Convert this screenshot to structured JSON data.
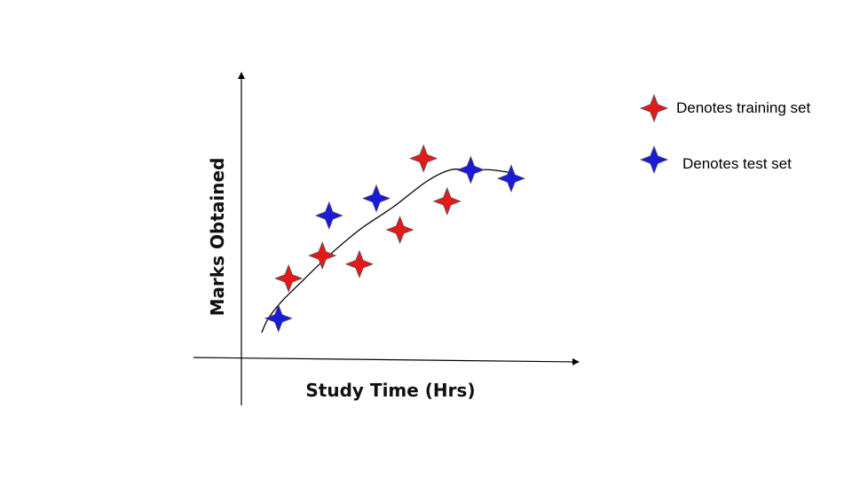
{
  "chart_data": {
    "type": "scatter",
    "title": "",
    "xlabel": "Study Time (Hrs)",
    "ylabel": "Marks Obtained",
    "xlim": [
      0,
      100
    ],
    "ylim": [
      0,
      100
    ],
    "grid": false,
    "legend_position": "top-right",
    "series": [
      {
        "name": "Denotes training set",
        "color": "#e31a1a",
        "marker": "four-point-star",
        "points": [
          {
            "x": 14,
            "y": 28
          },
          {
            "x": 24,
            "y": 36
          },
          {
            "x": 35,
            "y": 33
          },
          {
            "x": 47,
            "y": 45
          },
          {
            "x": 54,
            "y": 70
          },
          {
            "x": 61,
            "y": 55
          }
        ]
      },
      {
        "name": "Denotes test set",
        "color": "#1a1ad9",
        "marker": "four-point-star",
        "points": [
          {
            "x": 11,
            "y": 14
          },
          {
            "x": 26,
            "y": 50
          },
          {
            "x": 40,
            "y": 56
          },
          {
            "x": 68,
            "y": 66
          },
          {
            "x": 80,
            "y": 63
          }
        ]
      }
    ],
    "trend_curve": {
      "x": [
        6,
        8,
        12,
        18,
        25,
        35,
        45,
        55,
        62,
        68,
        74,
        80
      ],
      "y": [
        9,
        14,
        20,
        27,
        35,
        45,
        53,
        62,
        66,
        66,
        66,
        65
      ]
    }
  }
}
